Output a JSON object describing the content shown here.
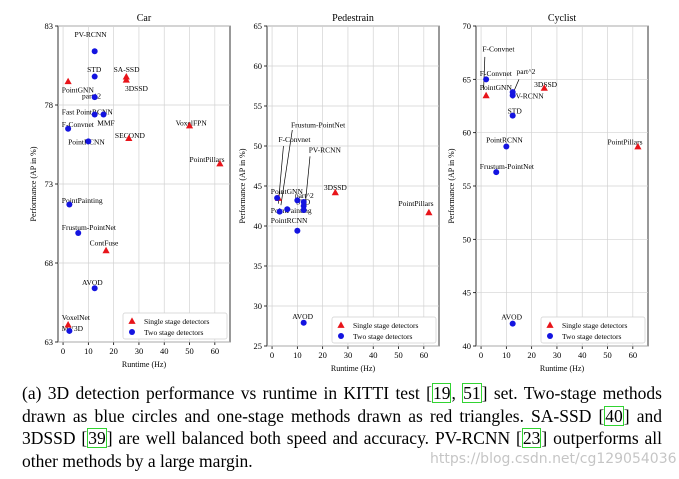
{
  "colors": {
    "single": "#e8141a",
    "two": "#1414e0",
    "axis": "#000000"
  },
  "chart_data": [
    {
      "type": "scatter",
      "title": "Car",
      "xlabel": "Runtime (Hz)",
      "ylabel": "Performance (AP in %)",
      "xlim": [
        -2,
        66
      ],
      "ylim": [
        63,
        83
      ],
      "xticks": [
        0,
        10,
        20,
        30,
        40,
        50,
        60
      ],
      "yticks": [
        63,
        68,
        73,
        78,
        83
      ],
      "legend": [
        "Single stage detectors",
        "Two stage detectors"
      ],
      "series": [
        {
          "name": "Single stage detectors",
          "points": [
            {
              "label": "PointGNN",
              "x": 2,
              "y": 79.5
            },
            {
              "label": "SA-SSD",
              "x": 25,
              "y": 79.8
            },
            {
              "label": "3DSSD",
              "x": 25,
              "y": 79.6
            },
            {
              "label": "SECOND",
              "x": 26,
              "y": 75.9
            },
            {
              "label": "VoxelFPN",
              "x": 50,
              "y": 76.7
            },
            {
              "label": "PointPillars",
              "x": 62,
              "y": 74.3
            },
            {
              "label": "ContFuse",
              "x": 17,
              "y": 68.8
            },
            {
              "label": "VoxelNet",
              "x": 2,
              "y": 64.1
            }
          ]
        },
        {
          "name": "Two stage detectors",
          "points": [
            {
              "label": "PV-RCNN",
              "x": 12.5,
              "y": 81.4
            },
            {
              "label": "STD",
              "x": 12.5,
              "y": 79.8
            },
            {
              "label": "part^2",
              "x": 12.5,
              "y": 78.5
            },
            {
              "label": "Fast PointRCNN",
              "x": 12.5,
              "y": 77.4
            },
            {
              "label": "MMF",
              "x": 16,
              "y": 77.4
            },
            {
              "label": "F-Convnet",
              "x": 2,
              "y": 76.5
            },
            {
              "label": "PointRCNN",
              "x": 10,
              "y": 75.7
            },
            {
              "label": "PointPainting",
              "x": 2.5,
              "y": 71.7
            },
            {
              "label": "Frustum-PointNet",
              "x": 6,
              "y": 69.9
            },
            {
              "label": "AVOD",
              "x": 12.5,
              "y": 66.4
            },
            {
              "label": "MV3D",
              "x": 2.5,
              "y": 63.7
            }
          ]
        }
      ],
      "annotations": [
        {
          "text": "PV-RCNN",
          "tx": 4.5,
          "ty": 82.3
        },
        {
          "text": "SA-SSD",
          "tx": 20,
          "ty": 80.1
        },
        {
          "text": "STD",
          "tx": 9.5,
          "ty": 80.1
        },
        {
          "text": "3DSSD",
          "tx": 24.5,
          "ty": 78.9
        },
        {
          "text": "PointGNN",
          "tx": -0.5,
          "ty": 78.8
        },
        {
          "text": "part^2",
          "tx": 7.5,
          "ty": 78.4
        },
        {
          "text": "Fast PointRCNN",
          "tx": -0.5,
          "ty": 77.4
        },
        {
          "text": "MMF",
          "tx": 13.5,
          "ty": 76.7
        },
        {
          "text": "F-Convnet",
          "tx": -0.5,
          "ty": 76.6
        },
        {
          "text": "VoxelFPN",
          "tx": 44.5,
          "ty": 76.7
        },
        {
          "text": "SECOND",
          "tx": 20.5,
          "ty": 75.9
        },
        {
          "text": "PointRCNN",
          "tx": 2,
          "ty": 75.5
        },
        {
          "text": "PointPillars",
          "tx": 50,
          "ty": 74.4
        },
        {
          "text": "PointPainting",
          "tx": -0.5,
          "ty": 71.8
        },
        {
          "text": "Frustum-PointNet",
          "tx": -0.5,
          "ty": 70.1
        },
        {
          "text": "ContFuse",
          "tx": 10.5,
          "ty": 69.1
        },
        {
          "text": "AVOD",
          "tx": 7.5,
          "ty": 66.6
        },
        {
          "text": "VoxelNet",
          "tx": -0.5,
          "ty": 64.4
        },
        {
          "text": "MV3D",
          "tx": -0.5,
          "ty": 63.7
        }
      ]
    },
    {
      "type": "scatter",
      "title": "Pedestrain",
      "xlabel": "Runtime (Hz)",
      "ylabel": "Performance (AP in %)",
      "xlim": [
        -2,
        66
      ],
      "ylim": [
        25,
        65
      ],
      "xticks": [
        0,
        10,
        20,
        30,
        40,
        50,
        60
      ],
      "yticks": [
        25,
        30,
        35,
        40,
        45,
        50,
        55,
        60,
        65
      ],
      "legend": [
        "Single stage detectors",
        "Two stage detectors"
      ],
      "series": [
        {
          "name": "Single stage detectors",
          "points": [
            {
              "label": "3DSSD",
              "x": 25,
              "y": 44.2
            },
            {
              "label": "PointPillars",
              "x": 62,
              "y": 41.7
            },
            {
              "label": "PointGNN",
              "x": 2.5,
              "y": 43.5
            }
          ]
        },
        {
          "name": "Two stage detectors",
          "points": [
            {
              "label": "PointGNN",
              "x": 2,
              "y": 43.5
            },
            {
              "label": "PointPainting",
              "x": 3,
              "y": 41.8
            },
            {
              "label": "F-Convnet",
              "x": 6,
              "y": 42.1
            },
            {
              "label": "Frustum-PointNet",
              "x": 10,
              "y": 43.2
            },
            {
              "label": "part^2",
              "x": 12.5,
              "y": 43.0
            },
            {
              "label": "STD",
              "x": 12.5,
              "y": 42.5
            },
            {
              "label": "PV-RCNN",
              "x": 12.5,
              "y": 42.0
            },
            {
              "label": "PointRCNN",
              "x": 10,
              "y": 39.4
            },
            {
              "label": "AVOD",
              "x": 12.5,
              "y": 27.9
            }
          ]
        }
      ],
      "annotations": [
        {
          "text": "Frustum-PointNet",
          "tx": 7.5,
          "ty": 52.3
        },
        {
          "text": "F-Convnet",
          "tx": 2.5,
          "ty": 50.5
        },
        {
          "text": "PV-RCNN",
          "tx": 14.5,
          "ty": 49.2
        },
        {
          "text": "3DSSD",
          "tx": 20.5,
          "ty": 44.5
        },
        {
          "text": "PointGNN",
          "tx": -0.5,
          "ty": 44.0
        },
        {
          "text": "part^2",
          "tx": 9,
          "ty": 43.5
        },
        {
          "text": "STD",
          "tx": 9.5,
          "ty": 42.7
        },
        {
          "text": "PointPainting",
          "tx": -0.5,
          "ty": 41.6
        },
        {
          "text": "PointPillars",
          "tx": 50,
          "ty": 42.5
        },
        {
          "text": "PointRCNN",
          "tx": -0.5,
          "ty": 40.4
        },
        {
          "text": "AVOD",
          "tx": 8,
          "ty": 28.4
        }
      ]
    },
    {
      "type": "scatter",
      "title": "Cyclist",
      "xlabel": "Runtime (Hz)",
      "ylabel": "Performance (AP in %)",
      "xlim": [
        -2,
        66
      ],
      "ylim": [
        40,
        70
      ],
      "xticks": [
        0,
        10,
        20,
        30,
        40,
        50,
        60
      ],
      "yticks": [
        40,
        45,
        50,
        55,
        60,
        65,
        70
      ],
      "legend": [
        "Single stage detectors",
        "Two stage detectors"
      ],
      "series": [
        {
          "name": "Single stage detectors",
          "points": [
            {
              "label": "PointGNN",
              "x": 2,
              "y": 63.5
            },
            {
              "label": "3DSSD",
              "x": 25,
              "y": 64.2
            },
            {
              "label": "PointPillars",
              "x": 62,
              "y": 58.7
            }
          ]
        },
        {
          "name": "Two stage detectors",
          "points": [
            {
              "label": "F-Convnet",
              "x": 2,
              "y": 65.0
            },
            {
              "label": "part^2",
              "x": 12.5,
              "y": 63.8
            },
            {
              "label": "PV-RCNN",
              "x": 12.5,
              "y": 63.5
            },
            {
              "label": "STD",
              "x": 12.5,
              "y": 61.6
            },
            {
              "label": "PointRCNN",
              "x": 10,
              "y": 58.7
            },
            {
              "label": "Frustum-PointNet",
              "x": 6,
              "y": 56.3
            },
            {
              "label": "AVOD",
              "x": 12.5,
              "y": 42.1
            }
          ]
        }
      ],
      "annotations": [
        {
          "text": "F-Convnet",
          "tx": 0.5,
          "ty": 67.6
        },
        {
          "text": "F-Convnet",
          "tx": -0.5,
          "ty": 65.3
        },
        {
          "text": "part^2",
          "tx": 14,
          "ty": 65.5
        },
        {
          "text": "3DSSD",
          "tx": 21,
          "ty": 64.3
        },
        {
          "text": "PointGNN",
          "tx": -0.5,
          "ty": 64.0
        },
        {
          "text": "PV-RCNN",
          "tx": 12,
          "ty": 63.2
        },
        {
          "text": "STD",
          "tx": 10.5,
          "ty": 61.8
        },
        {
          "text": "PointRCNN",
          "tx": 2,
          "ty": 59.1
        },
        {
          "text": "PointPillars",
          "tx": 50,
          "ty": 58.9
        },
        {
          "text": "Frustum-PointNet",
          "tx": -0.5,
          "ty": 56.6
        },
        {
          "text": "AVOD",
          "tx": 8,
          "ty": 42.5
        }
      ]
    }
  ],
  "caption": {
    "prefix": "(a) 3D detection performance vs runtime in KITTI test [",
    "ref1": "19",
    "sep1": ", ",
    "ref2": "51",
    "mid1": "] set. Two-stage methods drawn as blue circles and one-stage methods drawn as red triangles. SA-SSD [",
    "ref3": "40",
    "mid2": "] and 3DSSD [",
    "ref4": "39",
    "mid3": "] are well balanced both speed and accuracy. PV-RCNN [",
    "ref5": "23",
    "suffix": "] outperforms all other methods by a large margin."
  },
  "watermark": "https://blog.csdn.net/cg129054036"
}
